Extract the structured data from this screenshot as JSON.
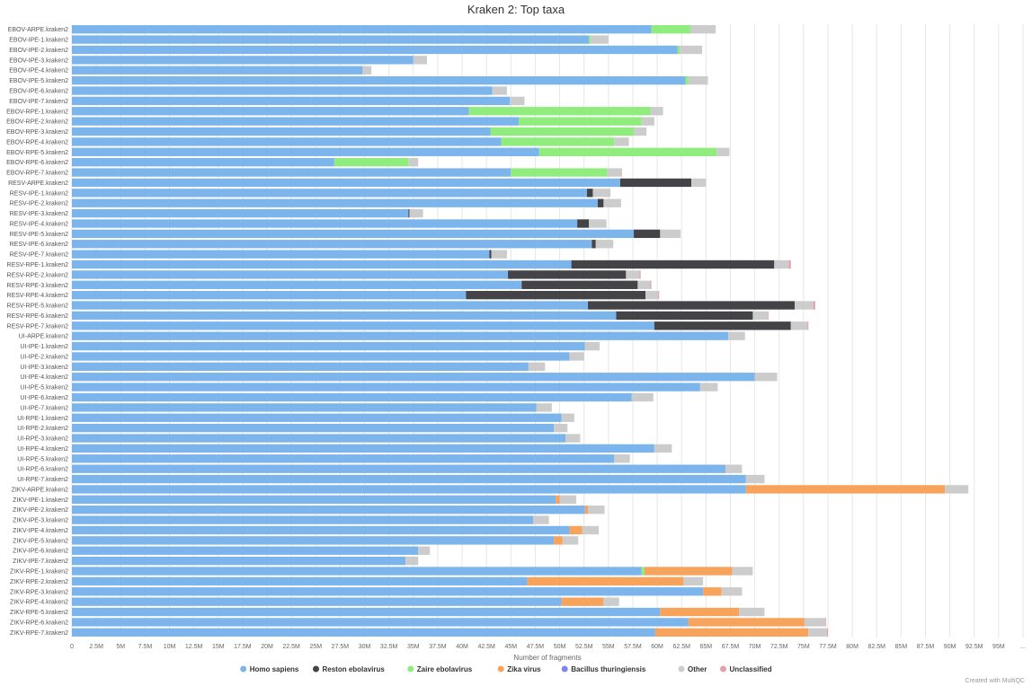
{
  "chart_data": {
    "type": "bar",
    "orientation": "horizontal",
    "stacked": true,
    "title": "Kraken 2: Top taxa",
    "xlabel": "Number of fragments",
    "ylabel": "",
    "xlim": [
      0,
      97500000
    ],
    "grid": true,
    "legend_position": "bottom",
    "x_ticks": [
      "0",
      "2.5M",
      "5M",
      "7.5M",
      "10M",
      "12.5M",
      "15M",
      "17.5M",
      "20M",
      "22.5M",
      "25M",
      "27.5M",
      "30M",
      "32.5M",
      "35M",
      "37.5M",
      "40M",
      "42.5M",
      "45M",
      "47.5M",
      "50M",
      "52.5M",
      "55M",
      "57.5M",
      "60M",
      "62.5M",
      "65M",
      "67.5M",
      "70M",
      "72.5M",
      "75M",
      "77.5M",
      "80M",
      "82.5M",
      "85M",
      "87.5M",
      "90M",
      "92.5M",
      "95M",
      "..."
    ],
    "categories": [
      "EBOV-ARPE.kraken2",
      "EBOV-IPE-1.kraken2",
      "EBOV-IPE-2.kraken2",
      "EBOV-IPE-3.kraken2",
      "EBOV-IPE-4.kraken2",
      "EBOV-IPE-5.kraken2",
      "EBOV-IPE-6.kraken2",
      "EBOV-IPE-7.kraken2",
      "EBOV-RPE-1.kraken2",
      "EBOV-RPE-2.kraken2",
      "EBOV-RPE-3.kraken2",
      "EBOV-RPE-4.kraken2",
      "EBOV-RPE-5.kraken2",
      "EBOV-RPE-6.kraken2",
      "EBOV-RPE-7.kraken2",
      "RESV-ARPE.kraken2",
      "RESV-IPE-1.kraken2",
      "RESV-IPE-2.kraken2",
      "RESV-IPE-3.kraken2",
      "RESV-IPE-4.kraken2",
      "RESV-IPE-5.kraken2",
      "RESV-IPE-6.kraken2",
      "RESV-IPE-7.kraken2",
      "RESV-RPE-1.kraken2",
      "RESV-RPE-2.kraken2",
      "RESV-RPE-3.kraken2",
      "RESV-RPE-4.kraken2",
      "RESV-RPE-5.kraken2",
      "RESV-RPE-6.kraken2",
      "RESV-RPE-7.kraken2",
      "UI-ARPE.kraken2",
      "UI-IPE-1.kraken2",
      "UI-IPE-2.kraken2",
      "UI-IPE-3.kraken2",
      "UI-IPE-4.kraken2",
      "UI-IPE-5.kraken2",
      "UI-IPE-6.kraken2",
      "UI-IPE-7.kraken2",
      "UI-RPE-1.kraken2",
      "UI-RPE-2.kraken2",
      "UI-RPE-3.kraken2",
      "UI-RPE-4.kraken2",
      "UI-RPE-5.kraken2",
      "UI-RPE-6.kraken2",
      "UI-RPE-7.kraken2",
      "ZIKV-ARPE.kraken2",
      "ZIKV-IPE-1.kraken2",
      "ZIKV-IPE-2.kraken2",
      "ZIKV-IPE-3.kraken2",
      "ZIKV-IPE-4.kraken2",
      "ZIKV-IPE-5.kraken2",
      "ZIKV-IPE-6.kraken2",
      "ZIKV-IPE-7.kraken2",
      "ZIKV-RPE-1.kraken2",
      "ZIKV-RPE-2.kraken2",
      "ZIKV-RPE-3.kraken2",
      "ZIKV-RPE-4.kraken2",
      "ZIKV-RPE-5.kraken2",
      "ZIKV-RPE-6.kraken2",
      "ZIKV-RPE-7.kraken2"
    ],
    "series": [
      {
        "name": "Homo sapiens",
        "color": "#7cb5ec",
        "values": [
          59.4,
          53.0,
          62.1,
          35.0,
          29.8,
          62.9,
          43.1,
          44.9,
          40.7,
          45.8,
          42.9,
          44.0,
          47.9,
          26.9,
          45.0,
          56.2,
          52.8,
          53.9,
          34.5,
          51.8,
          57.6,
          53.3,
          42.8,
          51.2,
          44.7,
          46.1,
          40.4,
          52.9,
          55.8,
          59.7,
          67.3,
          52.6,
          51.0,
          46.8,
          70.0,
          64.4,
          57.4,
          47.6,
          50.2,
          49.4,
          50.6,
          59.7,
          55.6,
          67.0,
          69.1,
          69.1,
          49.6,
          52.6,
          47.3,
          51.0,
          49.4,
          35.5,
          34.2,
          58.4,
          46.7,
          64.7,
          50.2,
          60.3,
          63.2,
          59.8
        ]
      },
      {
        "name": "Reston ebolavirus",
        "color": "#434348",
        "values": [
          0,
          0,
          0,
          0,
          0,
          0,
          0,
          0,
          0,
          0,
          0,
          0,
          0,
          0,
          0,
          7.3,
          0.6,
          0.6,
          0.1,
          1.2,
          2.7,
          0.4,
          0.2,
          20.8,
          12.1,
          11.9,
          18.4,
          21.2,
          14.0,
          14.0,
          0,
          0,
          0,
          0,
          0,
          0,
          0,
          0,
          0,
          0,
          0,
          0,
          0,
          0,
          0,
          0,
          0,
          0,
          0,
          0,
          0,
          0,
          0,
          0,
          0,
          0,
          0,
          0,
          0,
          0
        ]
      },
      {
        "name": "Zaire ebolavirus",
        "color": "#90ed7d",
        "values": [
          4.0,
          0.2,
          0.2,
          0,
          0,
          0.3,
          0,
          0,
          18.6,
          12.6,
          14.7,
          11.6,
          18.2,
          7.6,
          9.9,
          0,
          0,
          0,
          0,
          0,
          0,
          0,
          0,
          0,
          0,
          0,
          0,
          0,
          0,
          0,
          0,
          0,
          0,
          0,
          0,
          0,
          0,
          0,
          0,
          0,
          0,
          0,
          0,
          0,
          0,
          0,
          0,
          0,
          0,
          0,
          0,
          0,
          0,
          0.3,
          0,
          0,
          0,
          0,
          0,
          0
        ]
      },
      {
        "name": "Zika virus",
        "color": "#f7a35c",
        "values": [
          0,
          0,
          0,
          0,
          0,
          0,
          0,
          0,
          0,
          0,
          0,
          0,
          0,
          0,
          0,
          0,
          0,
          0,
          0,
          0,
          0,
          0,
          0,
          0,
          0,
          0,
          0,
          0,
          0,
          0,
          0,
          0,
          0,
          0,
          0,
          0,
          0,
          0,
          0,
          0,
          0,
          0,
          0,
          0,
          0,
          20.4,
          0.4,
          0.3,
          0,
          1.3,
          0.9,
          0,
          0,
          9.0,
          16.0,
          1.9,
          4.3,
          8.1,
          11.9,
          15.7
        ]
      },
      {
        "name": "Bacillus thuringiensis",
        "color": "#8085e9",
        "values": [
          0,
          0,
          0,
          0,
          0,
          0,
          0,
          0,
          0,
          0,
          0,
          0,
          0,
          0,
          0,
          0,
          0,
          0,
          0,
          0,
          0,
          0,
          0,
          0,
          0,
          0,
          0,
          0,
          0,
          0,
          0,
          0,
          0,
          0,
          0,
          0,
          0,
          0,
          0,
          0,
          0,
          0,
          0,
          0,
          0,
          0,
          0,
          0,
          0,
          0,
          0,
          0,
          0,
          0,
          0,
          0,
          0,
          0,
          0,
          0
        ]
      },
      {
        "name": "Other",
        "color": "#cccccc",
        "values": [
          2.6,
          1.8,
          2.3,
          1.4,
          0.9,
          2.0,
          1.5,
          1.5,
          1.3,
          1.3,
          1.3,
          1.5,
          1.3,
          1.0,
          1.5,
          1.5,
          1.8,
          1.8,
          1.4,
          1.8,
          2.1,
          1.8,
          1.6,
          1.5,
          1.4,
          1.3,
          1.3,
          1.9,
          1.5,
          1.7,
          1.7,
          1.5,
          1.5,
          1.7,
          2.3,
          1.8,
          2.2,
          1.6,
          1.3,
          1.4,
          1.5,
          1.8,
          1.6,
          1.7,
          1.9,
          2.4,
          1.7,
          1.7,
          1.6,
          1.7,
          1.6,
          1.2,
          1.3,
          2.1,
          2.0,
          2.1,
          1.6,
          2.6,
          2.1,
          1.9
        ]
      },
      {
        "name": "Unclassified",
        "color": "#e4a0a8",
        "values": [
          0,
          0,
          0,
          0,
          0,
          0,
          0,
          0,
          0,
          0,
          0,
          0,
          0,
          0,
          0,
          0,
          0,
          0,
          0,
          0,
          0,
          0,
          0,
          0.2,
          0.1,
          0.1,
          0.1,
          0.2,
          0.1,
          0.1,
          0,
          0,
          0,
          0,
          0,
          0,
          0,
          0,
          0,
          0,
          0,
          0,
          0,
          0,
          0,
          0,
          0,
          0,
          0,
          0,
          0,
          0,
          0,
          0,
          0,
          0,
          0,
          0,
          0.1,
          0.1
        ]
      }
    ],
    "value_unit": "M"
  },
  "credit": "Created with MultiQC"
}
